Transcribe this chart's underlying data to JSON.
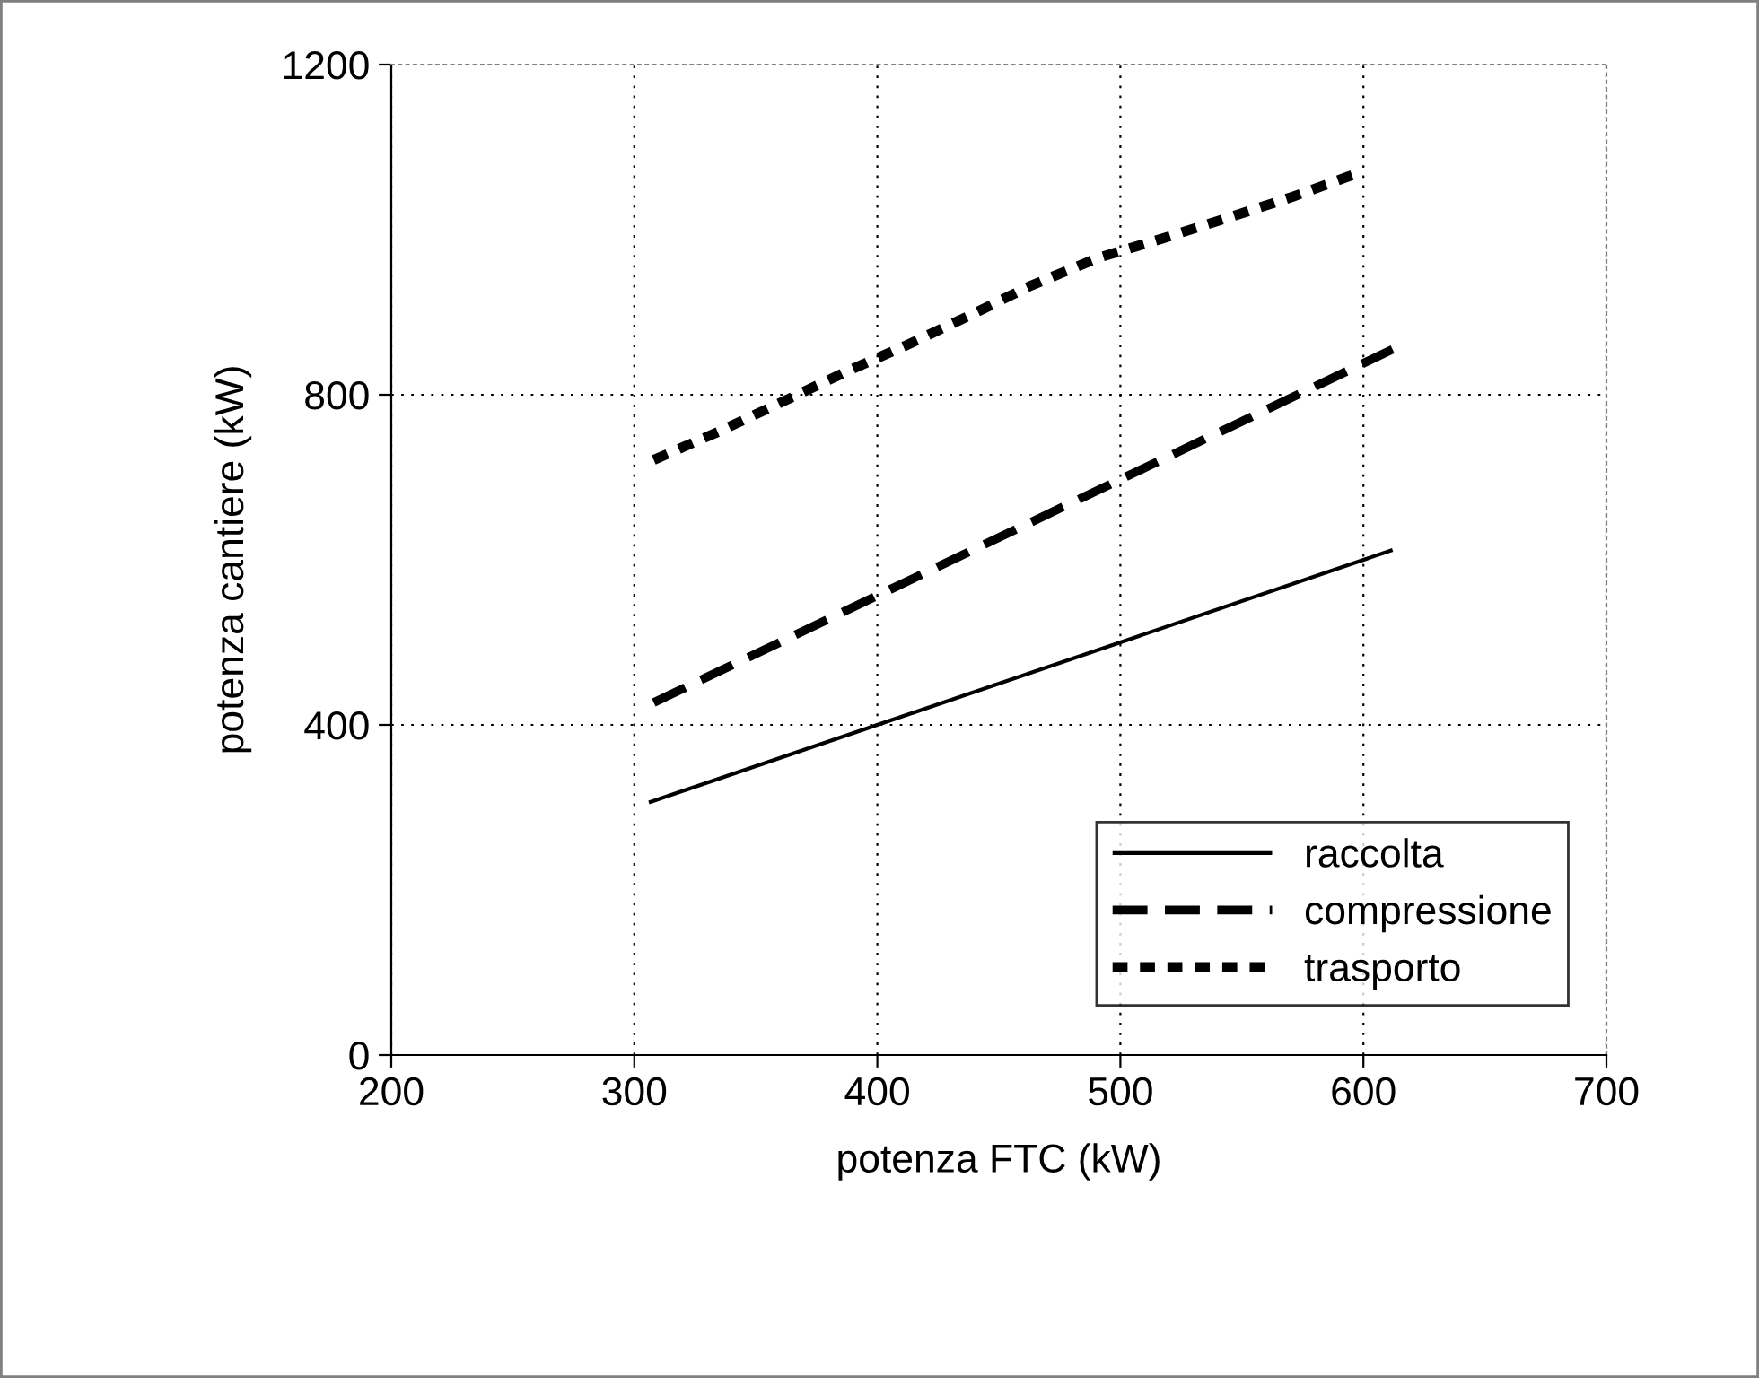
{
  "chart_data": {
    "type": "line",
    "xlabel": "potenza FTC (kW)",
    "ylabel": "potenza cantiere (kW)",
    "xlim": [
      200,
      700
    ],
    "xticks": [
      200,
      300,
      400,
      500,
      600,
      700
    ],
    "ylim": [
      0,
      1200
    ],
    "yticks": [
      0,
      400,
      800,
      1200
    ],
    "grid": true,
    "legend": "bottom right",
    "marker": "none",
    "series": [
      {
        "name": "raccolta",
        "color": "#000000",
        "line_style": "solid",
        "x": [
          306,
          612
        ],
        "values": [
          306,
          612
        ]
      },
      {
        "name": "compressione",
        "color": "#000000",
        "line_style": "dashed",
        "x": [
          308,
          401,
          612
        ],
        "values": [
          427,
          558,
          855
        ]
      },
      {
        "name": "trasporto",
        "color": "#000000",
        "line_style": "dotted",
        "x": [
          308,
          336,
          362,
          388,
          412,
          438,
          463,
          491,
          517,
          545,
          571,
          600
        ],
        "values": [
          721,
          757,
          793,
          829,
          860,
          896,
          932,
          966,
          989,
          1015,
          1040,
          1071
        ]
      }
    ]
  }
}
